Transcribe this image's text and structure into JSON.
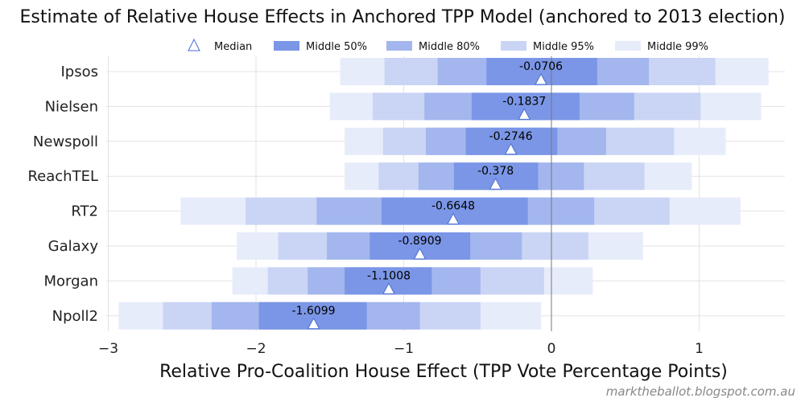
{
  "chart_data": {
    "type": "bar",
    "subtype": "horizontal-interval",
    "title": "Estimate of Relative House Effects in Anchored TPP Model (anchored to 2013 election)",
    "xlabel": "Relative Pro-Coalition House Effect (TPP Vote Percentage Points)",
    "ylabel": "",
    "xlim": [
      -3,
      1.6
    ],
    "xticks": [
      -3,
      -2,
      -1,
      0,
      1
    ],
    "xtick_labels": [
      "−3",
      "−2",
      "−1",
      "0",
      "1"
    ],
    "grid": true,
    "credit": "marktheballot.blogspot.com.au",
    "legend": {
      "placement": "top",
      "items": [
        {
          "key": "median",
          "label": "Median"
        },
        {
          "key": "m50",
          "label": "Middle 50%"
        },
        {
          "key": "m80",
          "label": "Middle 80%"
        },
        {
          "key": "m95",
          "label": "Middle 95%"
        },
        {
          "key": "m99",
          "label": "Middle 99%"
        }
      ]
    },
    "colors": {
      "m50": "#7b96e6",
      "m80": "#a3b6ee",
      "m95": "#cad5f5",
      "m99": "#e7ecfb",
      "marker_fill": "#ffffff",
      "marker_stroke": "#4a6fd4",
      "legend_marker": "#4a6fd4",
      "zero_line": "#777777",
      "grid": "#e3e3e3"
    },
    "categories": [
      "Ipsos",
      "Nielsen",
      "Newspoll",
      "ReachTEL",
      "RT2",
      "Galaxy",
      "Morgan",
      "Npoll2"
    ],
    "series": [
      {
        "name": "Ipsos",
        "median": -0.0706,
        "label": "-0.0706",
        "m50": [
          -0.44,
          0.31
        ],
        "m80": [
          -0.77,
          0.66
        ],
        "m95": [
          -1.13,
          1.11
        ],
        "m99": [
          -1.43,
          1.47
        ]
      },
      {
        "name": "Nielsen",
        "median": -0.1837,
        "label": "-0.1837",
        "m50": [
          -0.54,
          0.19
        ],
        "m80": [
          -0.86,
          0.56
        ],
        "m95": [
          -1.21,
          1.01
        ],
        "m99": [
          -1.5,
          1.42
        ]
      },
      {
        "name": "Newspoll",
        "median": -0.2746,
        "label": "-0.2746",
        "m50": [
          -0.58,
          0.04
        ],
        "m80": [
          -0.85,
          0.37
        ],
        "m95": [
          -1.14,
          0.83
        ],
        "m99": [
          -1.4,
          1.18
        ]
      },
      {
        "name": "ReachTEL",
        "median": -0.378,
        "label": "-0.378",
        "m50": [
          -0.66,
          -0.09
        ],
        "m80": [
          -0.9,
          0.22
        ],
        "m95": [
          -1.17,
          0.63
        ],
        "m99": [
          -1.4,
          0.95
        ]
      },
      {
        "name": "RT2",
        "median": -0.6648,
        "label": "-0.6648",
        "m50": [
          -1.15,
          -0.16
        ],
        "m80": [
          -1.59,
          0.29
        ],
        "m95": [
          -2.07,
          0.8
        ],
        "m99": [
          -2.51,
          1.28
        ]
      },
      {
        "name": "Galaxy",
        "median": -0.8909,
        "label": "-0.8909",
        "m50": [
          -1.23,
          -0.55
        ],
        "m80": [
          -1.52,
          -0.2
        ],
        "m95": [
          -1.85,
          0.25
        ],
        "m99": [
          -2.13,
          0.62
        ]
      },
      {
        "name": "Morgan",
        "median": -1.1008,
        "label": "-1.1008",
        "m50": [
          -1.4,
          -0.81
        ],
        "m80": [
          -1.65,
          -0.48
        ],
        "m95": [
          -1.92,
          -0.05
        ],
        "m99": [
          -2.16,
          0.28
        ]
      },
      {
        "name": "Npoll2",
        "median": -1.6099,
        "label": "-1.6099",
        "m50": [
          -1.98,
          -1.25
        ],
        "m80": [
          -2.3,
          -0.89
        ],
        "m95": [
          -2.63,
          -0.48
        ],
        "m99": [
          -2.93,
          -0.07
        ]
      }
    ]
  }
}
